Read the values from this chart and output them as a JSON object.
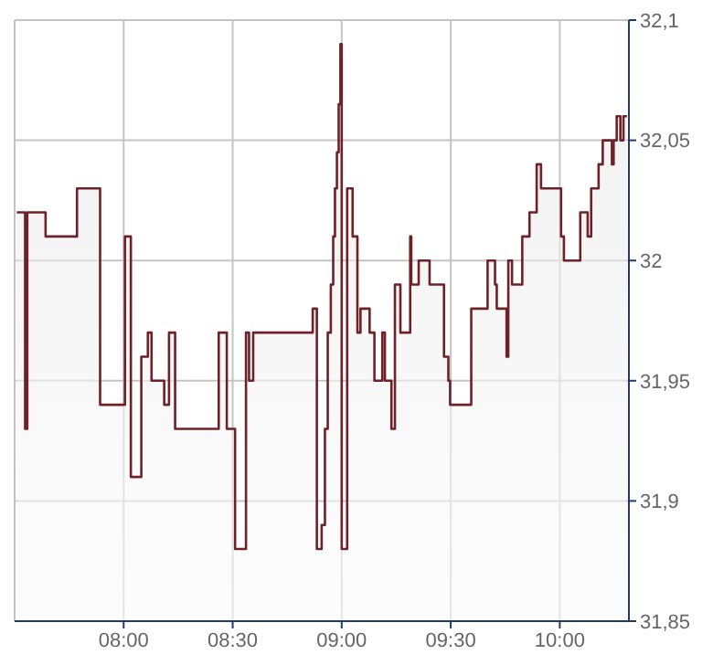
{
  "chart_data": {
    "type": "area",
    "color": "#6e2228",
    "x": [
      7.51,
      7.548,
      7.548,
      7.558,
      7.558,
      7.642,
      7.642,
      7.786,
      7.786,
      7.892,
      7.892,
      8.006,
      8.006,
      8.033,
      8.033,
      8.081,
      8.081,
      8.111,
      8.111,
      8.128,
      8.128,
      8.186,
      8.186,
      8.208,
      8.208,
      8.236,
      8.236,
      8.436,
      8.436,
      8.473,
      8.473,
      8.511,
      8.511,
      8.561,
      8.561,
      8.575,
      8.575,
      8.594,
      8.594,
      8.867,
      8.867,
      8.886,
      8.886,
      8.908,
      8.908,
      8.923,
      8.923,
      8.936,
      8.936,
      8.95,
      8.95,
      8.961,
      8.961,
      8.969,
      8.969,
      8.978,
      8.978,
      8.986,
      8.986,
      8.994,
      8.994,
      9.0,
      9.0,
      9.025,
      9.025,
      9.05,
      9.05,
      9.072,
      9.072,
      9.086,
      9.086,
      9.128,
      9.128,
      9.15,
      9.15,
      9.186,
      9.186,
      9.198,
      9.198,
      9.228,
      9.228,
      9.244,
      9.244,
      9.269,
      9.269,
      9.314,
      9.314,
      9.319,
      9.319,
      9.353,
      9.353,
      9.403,
      9.403,
      9.469,
      9.469,
      9.489,
      9.489,
      9.497,
      9.497,
      9.594,
      9.594,
      9.669,
      9.669,
      9.703,
      9.703,
      9.711,
      9.711,
      9.756,
      9.756,
      9.764,
      9.764,
      9.781,
      9.781,
      9.828,
      9.828,
      9.861,
      9.861,
      9.894,
      9.894,
      9.914,
      9.914,
      10.006,
      10.006,
      10.019,
      10.019,
      10.094,
      10.094,
      10.128,
      10.128,
      10.144,
      10.144,
      10.178,
      10.178,
      10.197,
      10.197,
      10.239,
      10.239,
      10.247,
      10.247,
      10.261,
      10.261,
      10.278,
      10.278,
      10.292,
      10.292,
      10.308
    ],
    "values": [
      32.02,
      32.02,
      31.93,
      31.93,
      32.02,
      32.02,
      32.01,
      32.01,
      32.03,
      32.03,
      31.94,
      31.94,
      32.01,
      32.01,
      31.91,
      31.91,
      31.96,
      31.96,
      31.97,
      31.97,
      31.95,
      31.95,
      31.94,
      31.94,
      31.97,
      31.97,
      31.93,
      31.93,
      31.97,
      31.97,
      31.93,
      31.93,
      31.88,
      31.88,
      31.97,
      31.97,
      31.95,
      31.95,
      31.97,
      31.97,
      31.98,
      31.98,
      31.88,
      31.88,
      31.89,
      31.89,
      31.93,
      31.93,
      31.97,
      31.97,
      31.99,
      31.99,
      32.01,
      32.01,
      32.03,
      32.03,
      32.045,
      32.045,
      32.065,
      32.065,
      32.09,
      32.09,
      31.88,
      31.88,
      32.03,
      32.03,
      32.01,
      32.01,
      31.97,
      31.97,
      31.98,
      31.98,
      31.97,
      31.97,
      31.95,
      31.95,
      31.97,
      31.97,
      31.95,
      31.95,
      31.93,
      31.93,
      31.99,
      31.99,
      31.97,
      31.97,
      32.01,
      32.01,
      31.99,
      31.99,
      32.0,
      32.0,
      31.99,
      31.99,
      31.96,
      31.96,
      31.95,
      31.95,
      31.94,
      31.94,
      31.98,
      31.98,
      32.0,
      32.0,
      31.99,
      31.99,
      31.98,
      31.98,
      31.96,
      31.96,
      32.0,
      32.0,
      31.99,
      31.99,
      32.01,
      32.01,
      32.02,
      32.02,
      32.04,
      32.04,
      32.03,
      32.03,
      32.01,
      32.01,
      32.0,
      32.0,
      32.02,
      32.02,
      32.01,
      32.01,
      32.03,
      32.03,
      32.04,
      32.04,
      32.05,
      32.05,
      32.04,
      32.04,
      32.05,
      32.05,
      32.06,
      32.06,
      32.05,
      32.05,
      32.06,
      32.06
    ],
    "xlim": [
      7.5,
      10.317
    ],
    "xticks": [
      {
        "value": 8,
        "label": "08:00"
      },
      {
        "value": 8.5,
        "label": "08:30"
      },
      {
        "value": 9,
        "label": "09:00"
      },
      {
        "value": 9.5,
        "label": "09:30"
      },
      {
        "value": 10,
        "label": "10:00"
      }
    ],
    "ylim": [
      31.85,
      32.1
    ],
    "yticks": [
      {
        "value": 31.85,
        "label": "31,85"
      },
      {
        "value": 31.9,
        "label": "31,9"
      },
      {
        "value": 31.95,
        "label": "31,95"
      },
      {
        "value": 32,
        "label": "32"
      },
      {
        "value": 32.05,
        "label": "32,05"
      },
      {
        "value": 32.1,
        "label": "32,1"
      }
    ],
    "grid": true
  }
}
